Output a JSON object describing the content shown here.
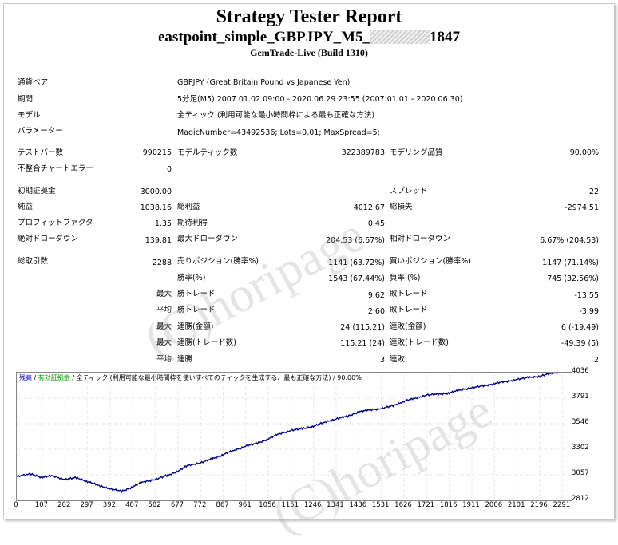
{
  "header": {
    "title": "Strategy Tester Report",
    "subtitle_prefix": "eastpoint_simple_GBPJPY_M5_",
    "subtitle_suffix": "1847",
    "server": "GemTrade-Live (Build 1310)"
  },
  "info": [
    {
      "label": "通貨ペア",
      "value": "GBPJPY (Great Britain Pound vs Japanese Yen)"
    },
    {
      "label": "期間",
      "value": "5分足(M5) 2007.01.02 09:00 - 2020.06.29 23:55 (2007.01.01 - 2020.06.30)"
    },
    {
      "label": "モデル",
      "value": "全ティック (利用可能な最小時間枠による最も正確な方法)"
    },
    {
      "label": "パラメーター",
      "value": "MagicNumber=43492536; Lots=0.01; MaxSpread=5;"
    }
  ],
  "stats": {
    "bars_label": "テストバー数",
    "bars": "990215",
    "ticks_label": "モデルティック数",
    "ticks": "322389783",
    "quality_label": "モデリング品質",
    "quality": "90.00%",
    "mismatch_label": "不整合チャートエラー",
    "mismatch": "0",
    "deposit_label": "初期証拠金",
    "deposit": "3000.00",
    "spread_label": "スプレッド",
    "spread": "22",
    "net_label": "純益",
    "net": "1038.16",
    "gross_profit_label": "総利益",
    "gross_profit": "4012.67",
    "gross_loss_label": "総損失",
    "gross_loss": "-2974.51",
    "pf_label": "プロフィットファクタ",
    "pf": "1.35",
    "expected_label": "期待利得",
    "expected": "0.45",
    "abs_dd_label": "絶対ドローダウン",
    "abs_dd": "139.81",
    "max_dd_label": "最大ドローダウン",
    "max_dd": "204.53 (6.67%)",
    "rel_dd_label": "相対ドローダウン",
    "rel_dd": "6.67% (204.53)",
    "total_trades_label": "総取引数",
    "total_trades": "2288",
    "short_label": "売りポジション(勝率%)",
    "short": "1141 (63.72%)",
    "long_label": "買いポジション(勝率%)",
    "long": "1147 (71.14%)",
    "win_rate_label": "勝率(%)",
    "win_rate": "1543 (67.44%)",
    "loss_rate_label": "負率 (%)",
    "loss_rate": "745 (32.56%)",
    "max_label": "最大",
    "avg_label": "平均",
    "win_trade_label": "勝トレード",
    "loss_trade_label": "敗トレード",
    "max_win": "9.62",
    "max_loss": "-13.55",
    "avg_win": "2.60",
    "avg_loss": "-3.99",
    "cons_win_amt_label": "連勝(金額)",
    "cons_win_amt": "24 (115.21)",
    "cons_loss_amt_label": "連敗(金額)",
    "cons_loss_amt": "6 (-19.49)",
    "cons_win_trades_label": "連勝(トレード数)",
    "cons_win_trades": "115.21 (24)",
    "cons_loss_trades_label": "連敗(トレード数)",
    "cons_loss_trades": "-49.39 (5)",
    "avg_cons_win_label": "連勝",
    "avg_cons_win": "3",
    "avg_cons_loss_label": "連敗",
    "avg_cons_loss": "2"
  },
  "chart_data": {
    "type": "line",
    "legend_balance": "残高",
    "legend_lot": "有効証拠金",
    "legend_rest": "/ 全ティック (利用可能な最小時間枠を使いすべてのティックを生成する、最も正確な方法) / 90.00%",
    "line_color": "#00008b",
    "x_ticks": [
      "0",
      "107",
      "202",
      "297",
      "392",
      "487",
      "582",
      "677",
      "772",
      "867",
      "961",
      "1056",
      "1151",
      "1246",
      "1341",
      "1436",
      "1531",
      "1626",
      "1721",
      "1816",
      "1911",
      "2006",
      "2101",
      "2196",
      "2291"
    ],
    "y_ticks": [
      "4036",
      "3791",
      "3546",
      "3302",
      "3057",
      "2812"
    ],
    "xlim": [
      0,
      2330
    ],
    "ylim": [
      2812,
      4036
    ],
    "x": [
      0,
      60,
      107,
      150,
      202,
      250,
      297,
      340,
      392,
      440,
      487,
      530,
      582,
      630,
      677,
      720,
      772,
      820,
      867,
      910,
      961,
      1010,
      1056,
      1100,
      1151,
      1200,
      1246,
      1290,
      1341,
      1390,
      1436,
      1480,
      1531,
      1580,
      1626,
      1670,
      1721,
      1770,
      1816,
      1860,
      1911,
      1960,
      2006,
      2050,
      2101,
      2150,
      2196,
      2240,
      2288
    ],
    "y": [
      3040,
      3065,
      3030,
      3050,
      3010,
      3030,
      2990,
      2960,
      2920,
      2900,
      2940,
      2990,
      3010,
      3050,
      3090,
      3150,
      3170,
      3210,
      3250,
      3290,
      3330,
      3360,
      3400,
      3450,
      3480,
      3500,
      3520,
      3560,
      3590,
      3620,
      3660,
      3680,
      3690,
      3720,
      3760,
      3790,
      3820,
      3830,
      3840,
      3870,
      3890,
      3910,
      3930,
      3950,
      3970,
      3990,
      4000,
      4030,
      4040
    ]
  }
}
